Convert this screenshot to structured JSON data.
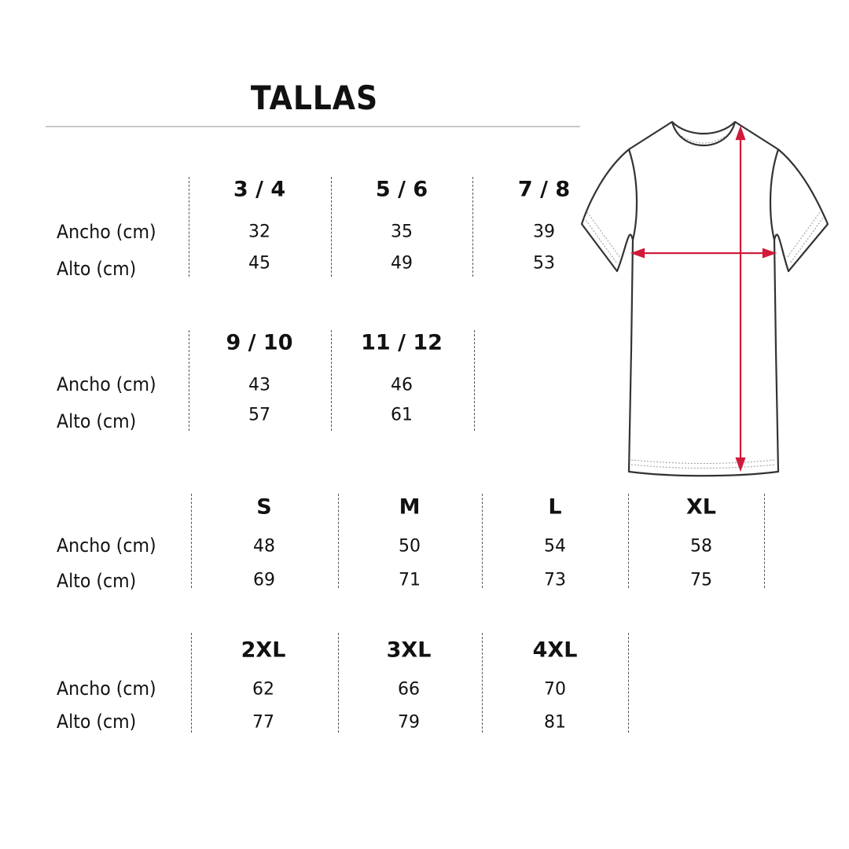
{
  "title": "TALLAS",
  "row_labels": {
    "width": "Ancho (cm)",
    "height": "Alto (cm)"
  },
  "groups": [
    {
      "sizes": [
        {
          "size": "3 / 4",
          "ancho": "32",
          "alto": "45"
        },
        {
          "size": "5 / 6",
          "ancho": "35",
          "alto": "49"
        },
        {
          "size": "7 / 8",
          "ancho": "39",
          "alto": "53"
        }
      ]
    },
    {
      "sizes": [
        {
          "size": "9 / 10",
          "ancho": "43",
          "alto": "57"
        },
        {
          "size": "11 / 12",
          "ancho": "46",
          "alto": "61"
        }
      ]
    },
    {
      "sizes": [
        {
          "size": "S",
          "ancho": "48",
          "alto": "69"
        },
        {
          "size": "M",
          "ancho": "50",
          "alto": "71"
        },
        {
          "size": "L",
          "ancho": "54",
          "alto": "73"
        },
        {
          "size": "XL",
          "ancho": "58",
          "alto": "75"
        }
      ]
    },
    {
      "sizes": [
        {
          "size": "2XL",
          "ancho": "62",
          "alto": "77"
        },
        {
          "size": "3XL",
          "ancho": "66",
          "alto": "79"
        },
        {
          "size": "4XL",
          "ancho": "70",
          "alto": "81"
        }
      ]
    }
  ],
  "illustration": {
    "icon": "t-shirt-measurement-icon",
    "arrow_color": "#d11a3a",
    "outline_color": "#333333"
  }
}
